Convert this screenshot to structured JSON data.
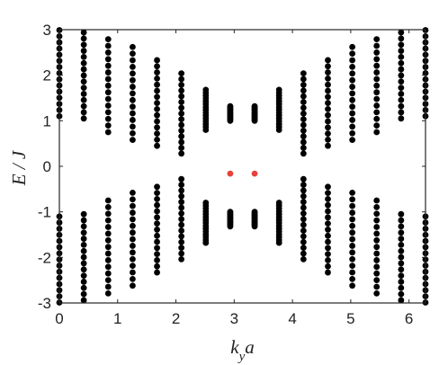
{
  "chart_data": {
    "type": "scatter",
    "title": "",
    "xlabel": "k_y a",
    "ylabel": "E / J",
    "xlim": [
      0,
      6.2832
    ],
    "ylim": [
      -3,
      3
    ],
    "x_ticks": [
      0,
      1,
      2,
      3,
      4,
      5,
      6
    ],
    "y_ticks": [
      3,
      2,
      1,
      0,
      -1,
      -2,
      -3
    ],
    "grid": false,
    "legend": "none",
    "colors": {
      "bulk": "#000000",
      "edge": "#e8413c",
      "axis": "#262626"
    },
    "series": [
      {
        "role": "bulk",
        "k_values": [
          0.0,
          0.419,
          0.838,
          1.257,
          1.676,
          2.094,
          2.513,
          2.932,
          3.351,
          3.77,
          4.189,
          4.608,
          5.027,
          5.445,
          5.864,
          6.283
        ],
        "band_inner_edges": [
          1.1,
          1.05,
          0.75,
          0.58,
          0.45,
          0.28,
          0.8,
          1.0,
          1.0,
          0.8,
          0.28,
          0.45,
          0.58,
          0.75,
          1.05,
          1.1
        ],
        "band_outer_edges": [
          2.99,
          2.94,
          2.79,
          2.62,
          2.33,
          2.04,
          1.68,
          1.32,
          1.32,
          1.68,
          2.04,
          2.33,
          2.62,
          2.79,
          2.94,
          2.99
        ],
        "points_per_band": 15
      },
      {
        "role": "edge",
        "points": [
          {
            "x": 2.932,
            "y": -0.16
          },
          {
            "x": 3.351,
            "y": -0.16
          }
        ]
      }
    ]
  }
}
